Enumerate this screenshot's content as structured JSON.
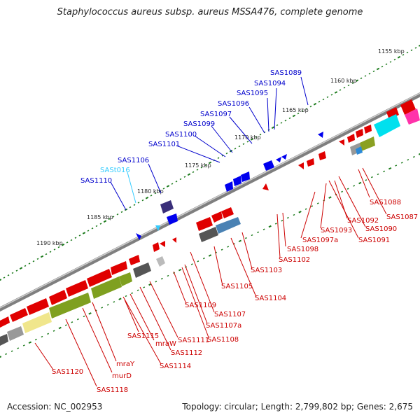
{
  "title": "Staphylococcus aureus subsp. aureus MSSA476, complete genome",
  "footer": {
    "accession": "Accession: NC_002953",
    "topology": "Topology: circular; Length: 2,799,802 bp; Genes: 2,675"
  },
  "colors": {
    "forward_label": "#0000cc",
    "rna_label": "#33ccff",
    "reverse_label": "#cc0000",
    "tick": "#1a7a1a",
    "backbone": "#7f7f7f"
  },
  "scale_labels": [
    "1155 kbp",
    "1160 kbp",
    "1165 kbp",
    "1170 kbp",
    "1175 kbp",
    "1180 kbp",
    "1185 kbp",
    "1190 kbp"
  ],
  "forward_labels": [
    "SAS1089",
    "SAS1094",
    "SAS1095",
    "SAS1096",
    "SAS1097",
    "SAS1099",
    "SAS1100",
    "SAS1101",
    "SAS1106",
    "SASt016",
    "SAS1110"
  ],
  "reverse_labels": [
    "SAS1088",
    "SAS1087",
    "SAS1092",
    "SAS1090",
    "SAS1093",
    "SAS1091",
    "SAS1097a",
    "SAS1098",
    "SAS1102",
    "SAS1103",
    "SAS1104",
    "SAS1105",
    "SAS1107",
    "SAS1107a",
    "SAS1108",
    "SAS1109",
    "SAS1111",
    "SAS1112",
    "SAS1114",
    "SAS1115",
    "mraW",
    "mraY",
    "murD",
    "SAS1118",
    "SAS1120"
  ]
}
